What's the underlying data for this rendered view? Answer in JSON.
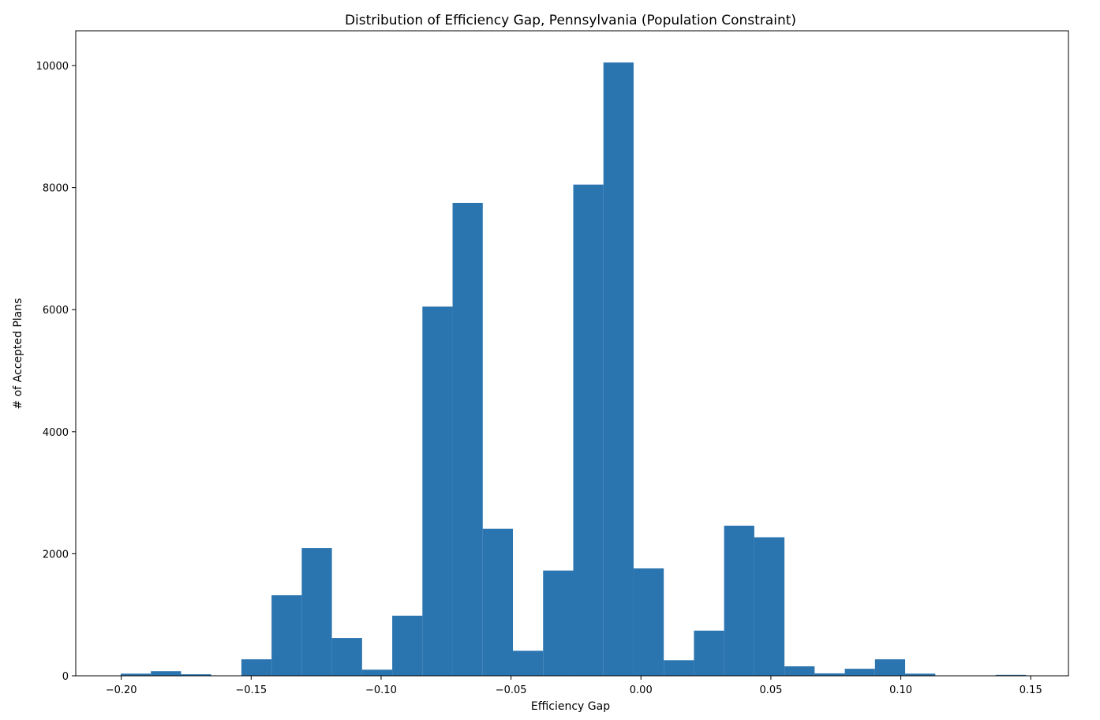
{
  "chart_data": {
    "type": "bar",
    "title": "Distribution of Efficiency Gap, Pennsylvania (Population Constraint)",
    "xlabel": "Efficiency Gap",
    "ylabel": "# of Accepted Plans",
    "xlim": [
      -0.2175,
      0.1645
    ],
    "ylim": [
      0,
      10570
    ],
    "grid": false,
    "legend": "none",
    "color": "#2a74b0",
    "x_ticks": [
      -0.2,
      -0.15,
      -0.1,
      -0.05,
      0.0,
      0.05,
      0.1,
      0.15
    ],
    "x_tick_labels": [
      "−0.20",
      "−0.15",
      "−0.10",
      "−0.05",
      "0.00",
      "0.05",
      "0.10",
      "0.15"
    ],
    "y_ticks": [
      0,
      2000,
      4000,
      6000,
      8000,
      10000
    ],
    "y_tick_labels": [
      "0",
      "2000",
      "4000",
      "6000",
      "8000",
      "10000"
    ],
    "bin_start": -0.2002,
    "bin_width": 0.01161,
    "values": [
      35,
      75,
      25,
      0,
      270,
      1320,
      2095,
      620,
      100,
      985,
      6050,
      7750,
      2410,
      410,
      1725,
      8050,
      10050,
      1760,
      255,
      740,
      2460,
      2270,
      155,
      40,
      115,
      270,
      35,
      0,
      0,
      15
    ]
  }
}
